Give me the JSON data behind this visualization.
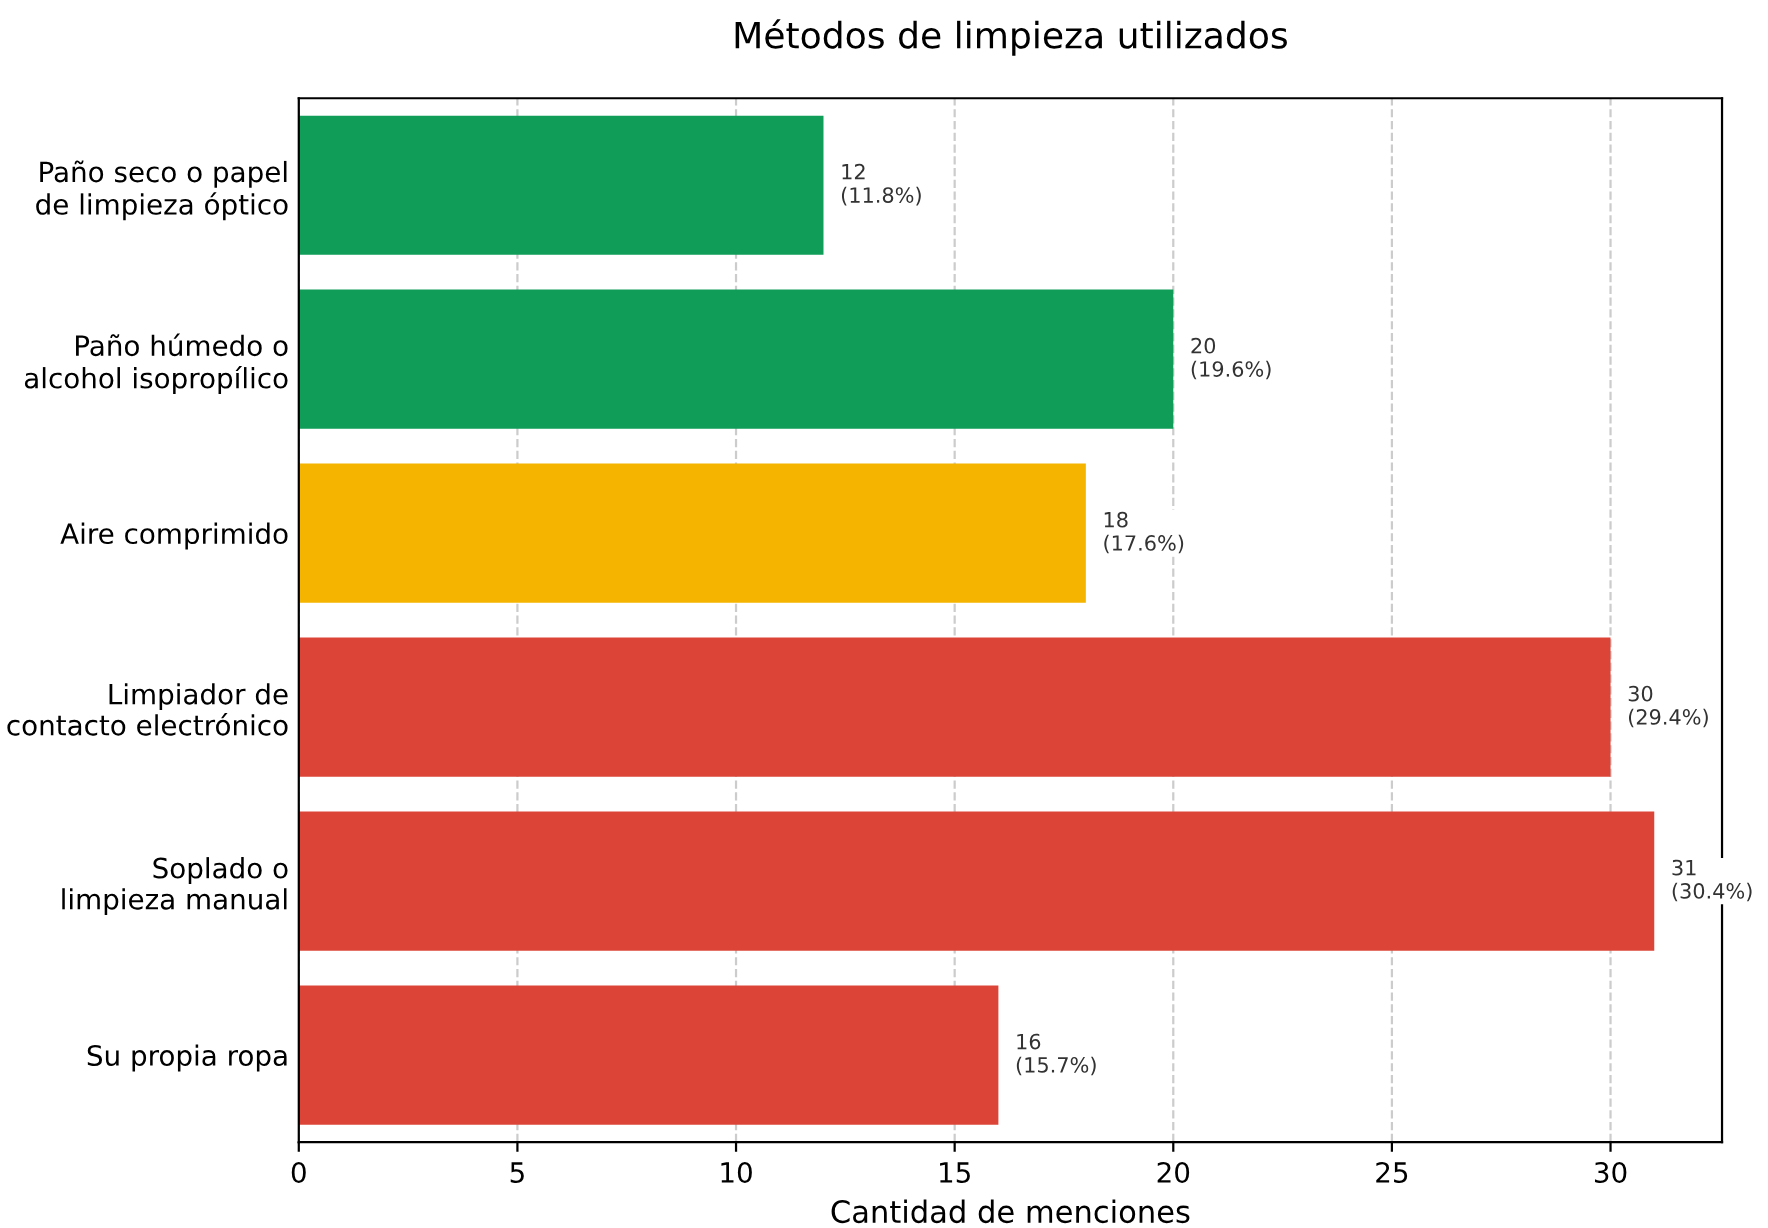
{
  "chart_data": {
    "type": "bar",
    "orientation": "horizontal",
    "title": "Métodos de limpieza utilizados",
    "xlabel": "Cantidad de menciones",
    "categories": [
      "Paño seco o papel\nde limpieza óptico",
      "Paño húmedo o\nalcohol isopropílico",
      "Aire comprimido",
      "Limpiador de\ncontacto electrónico",
      "Soplado o\nlimpieza manual",
      "Su propia ropa"
    ],
    "values": [
      12,
      20,
      18,
      30,
      31,
      16
    ],
    "colors": [
      "#0f9d58",
      "#0f9d58",
      "#f4b400",
      "#db4437",
      "#db4437",
      "#db4437"
    ],
    "value_labels": [
      "12\n(11.8%)",
      "20\n(19.6%)",
      "18\n(17.6%)",
      "30\n(29.4%)",
      "31\n(30.4%)",
      "16\n(15.7%)"
    ],
    "xlim": [
      0,
      32.55
    ],
    "xticks": [
      0,
      5,
      10,
      15,
      20,
      25,
      30
    ],
    "grid": "x",
    "legend": false
  }
}
